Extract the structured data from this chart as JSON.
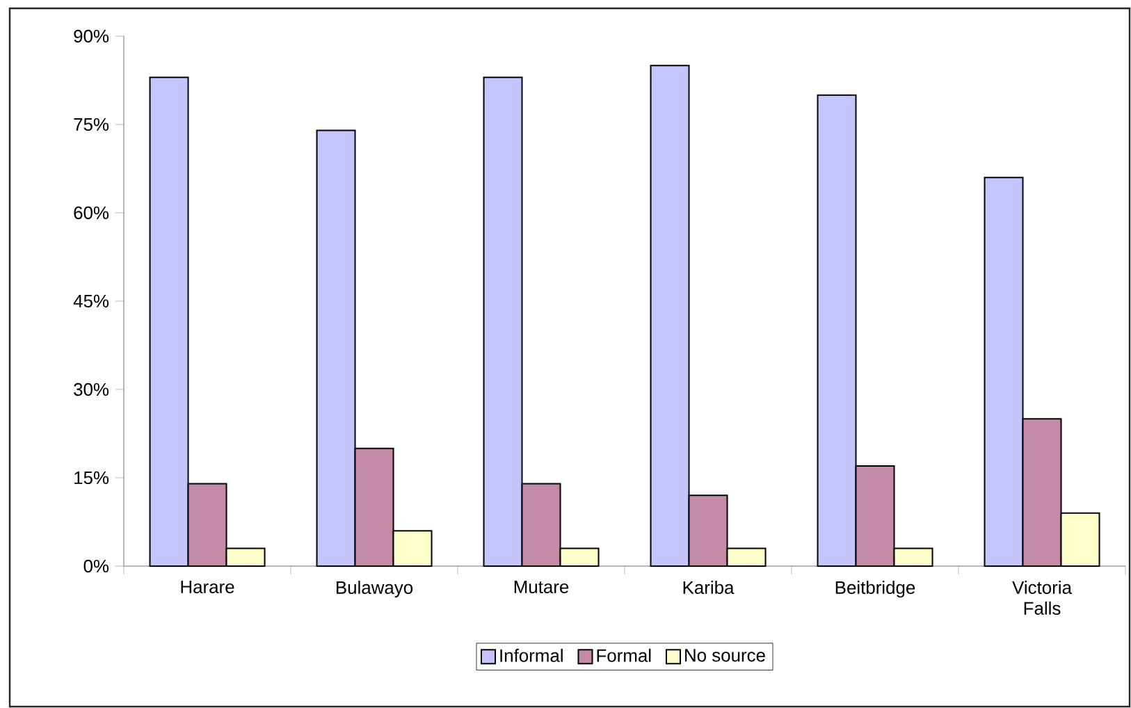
{
  "chart_data": {
    "type": "bar",
    "categories": [
      "Harare",
      "Bulawayo",
      "Mutare",
      "Kariba",
      "Beitbridge",
      "Victoria Falls"
    ],
    "series": [
      {
        "name": "Informal",
        "color": "#c4c4ff",
        "values": [
          83,
          74,
          83,
          85,
          80,
          66
        ]
      },
      {
        "name": "Formal",
        "color": "#c48aa6",
        "values": [
          14,
          20,
          14,
          12,
          17,
          25
        ]
      },
      {
        "name": "No source",
        "color": "#ffffcc",
        "values": [
          3,
          6,
          3,
          3,
          3,
          9
        ]
      }
    ],
    "ylim": [
      0,
      90
    ],
    "yticks": [
      {
        "value": 0,
        "label": "0%"
      },
      {
        "value": 15,
        "label": "15%"
      },
      {
        "value": 30,
        "label": "30%"
      },
      {
        "value": 45,
        "label": "45%"
      },
      {
        "value": 60,
        "label": "60%"
      },
      {
        "value": 75,
        "label": "75%"
      },
      {
        "value": 90,
        "label": "90%"
      }
    ],
    "legend": "bottom"
  }
}
